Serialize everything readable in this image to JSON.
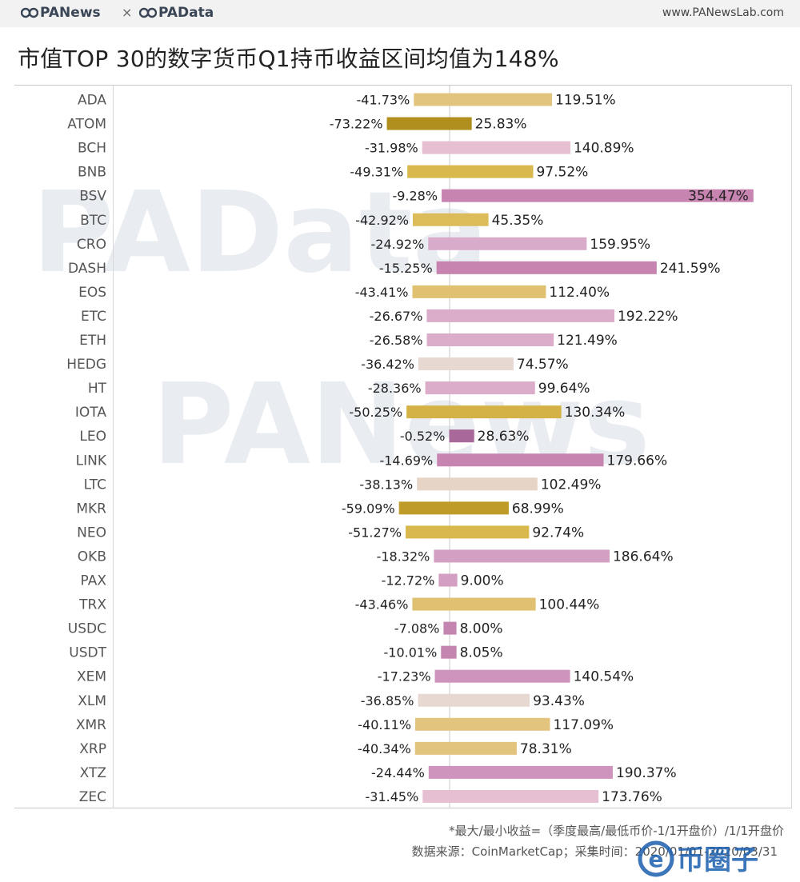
{
  "header": {
    "brand_left": "PANews",
    "brand_separator": "×",
    "brand_right": "PAData",
    "site_url": "www.PANewsLab.com"
  },
  "title": "市值TOP 30的数字货币Q1持币收益区间均值为148%",
  "watermarks": [
    "PAData",
    "PANews"
  ],
  "footer": {
    "note": "*最大/最小收益=（季度最高/最低币价-1/1开盘价）/1/1开盘价",
    "source": "数据来源：CoinMarketCap；采集时间：2020/01/01-2020/03/31",
    "corner_logo_text": "币圈子"
  },
  "chart_data": {
    "type": "bar",
    "orientation": "horizontal diverging",
    "categories": [
      "ADA",
      "ATOM",
      "BCH",
      "BNB",
      "BSV",
      "BTC",
      "CRO",
      "DASH",
      "EOS",
      "ETC",
      "ETH",
      "HEDG",
      "HT",
      "IOTA",
      "LEO",
      "LINK",
      "LTC",
      "MKR",
      "NEO",
      "OKB",
      "PAX",
      "TRX",
      "USDC",
      "USDT",
      "XEM",
      "XLM",
      "XMR",
      "XRP",
      "XTZ",
      "ZEC"
    ],
    "series": [
      {
        "values": [
          -41.73,
          -73.22,
          -31.98,
          -49.31,
          -9.28,
          -42.92,
          -24.92,
          -15.25,
          -43.41,
          -26.67,
          -26.58,
          -36.42,
          -28.36,
          -50.25,
          -0.52,
          -14.69,
          -38.13,
          -59.09,
          -51.27,
          -18.32,
          -12.72,
          -43.46,
          -7.08,
          -10.01,
          -17.23,
          -36.85,
          -40.11,
          -40.34,
          -24.44,
          -31.45
        ]
      },
      {
        "values": [
          119.51,
          25.83,
          140.89,
          97.52,
          354.47,
          45.35,
          159.95,
          241.59,
          112.4,
          192.22,
          121.49,
          74.57,
          99.64,
          130.34,
          28.63,
          179.66,
          102.49,
          68.99,
          92.74,
          186.64,
          9.0,
          100.44,
          8.0,
          8.05,
          140.54,
          93.43,
          117.09,
          78.31,
          190.37,
          173.76
        ]
      }
    ],
    "min_labels": [
      "-41.73%",
      "-73.22%",
      "-31.98%",
      "-49.31%",
      "-9.28%",
      "-42.92%",
      "-24.92%",
      "-15.25%",
      "-43.41%",
      "-26.67%",
      "-26.58%",
      "-36.42%",
      "-28.36%",
      "-50.25%",
      "-0.52%",
      "-14.69%",
      "-38.13%",
      "-59.09%",
      "-51.27%",
      "-18.32%",
      "-12.72%",
      "-43.46%",
      "-7.08%",
      "-10.01%",
      "-17.23%",
      "-36.85%",
      "-40.11%",
      "-40.34%",
      "-24.44%",
      "-31.45%"
    ],
    "max_labels": [
      "119.51%",
      "25.83%",
      "140.89%",
      "97.52%",
      "354.47%",
      "45.35%",
      "159.95%",
      "241.59%",
      "112.40%",
      "192.22%",
      "121.49%",
      "74.57%",
      "99.64%",
      "130.34%",
      "28.63%",
      "179.66%",
      "102.49%",
      "68.99%",
      "92.74%",
      "186.64%",
      "9.00%",
      "100.44%",
      "8.00%",
      "8.05%",
      "140.54%",
      "93.43%",
      "117.09%",
      "78.31%",
      "190.37%",
      "173.76%"
    ],
    "bar_colors": [
      "#e2c47e",
      "#b08f1e",
      "#e6bfd3",
      "#d9b84e",
      "#c784b0",
      "#dcbc58",
      "#d9abcb",
      "#c784b0",
      "#dfc171",
      "#dcaccb",
      "#dcaccb",
      "#e8d8d2",
      "#dcaccb",
      "#d4b246",
      "#a8699a",
      "#c784b0",
      "#e6d5c6",
      "#bf9c29",
      "#d9b84e",
      "#d39fc2",
      "#d39fc2",
      "#dfc171",
      "#c486b1",
      "#c486b1",
      "#cf94bd",
      "#e8d8d2",
      "#e2c47e",
      "#e2c47e",
      "#cf94bd",
      "#e6bfd3"
    ],
    "xlim": [
      -80,
      360
    ],
    "grid": false,
    "legend": "none"
  }
}
